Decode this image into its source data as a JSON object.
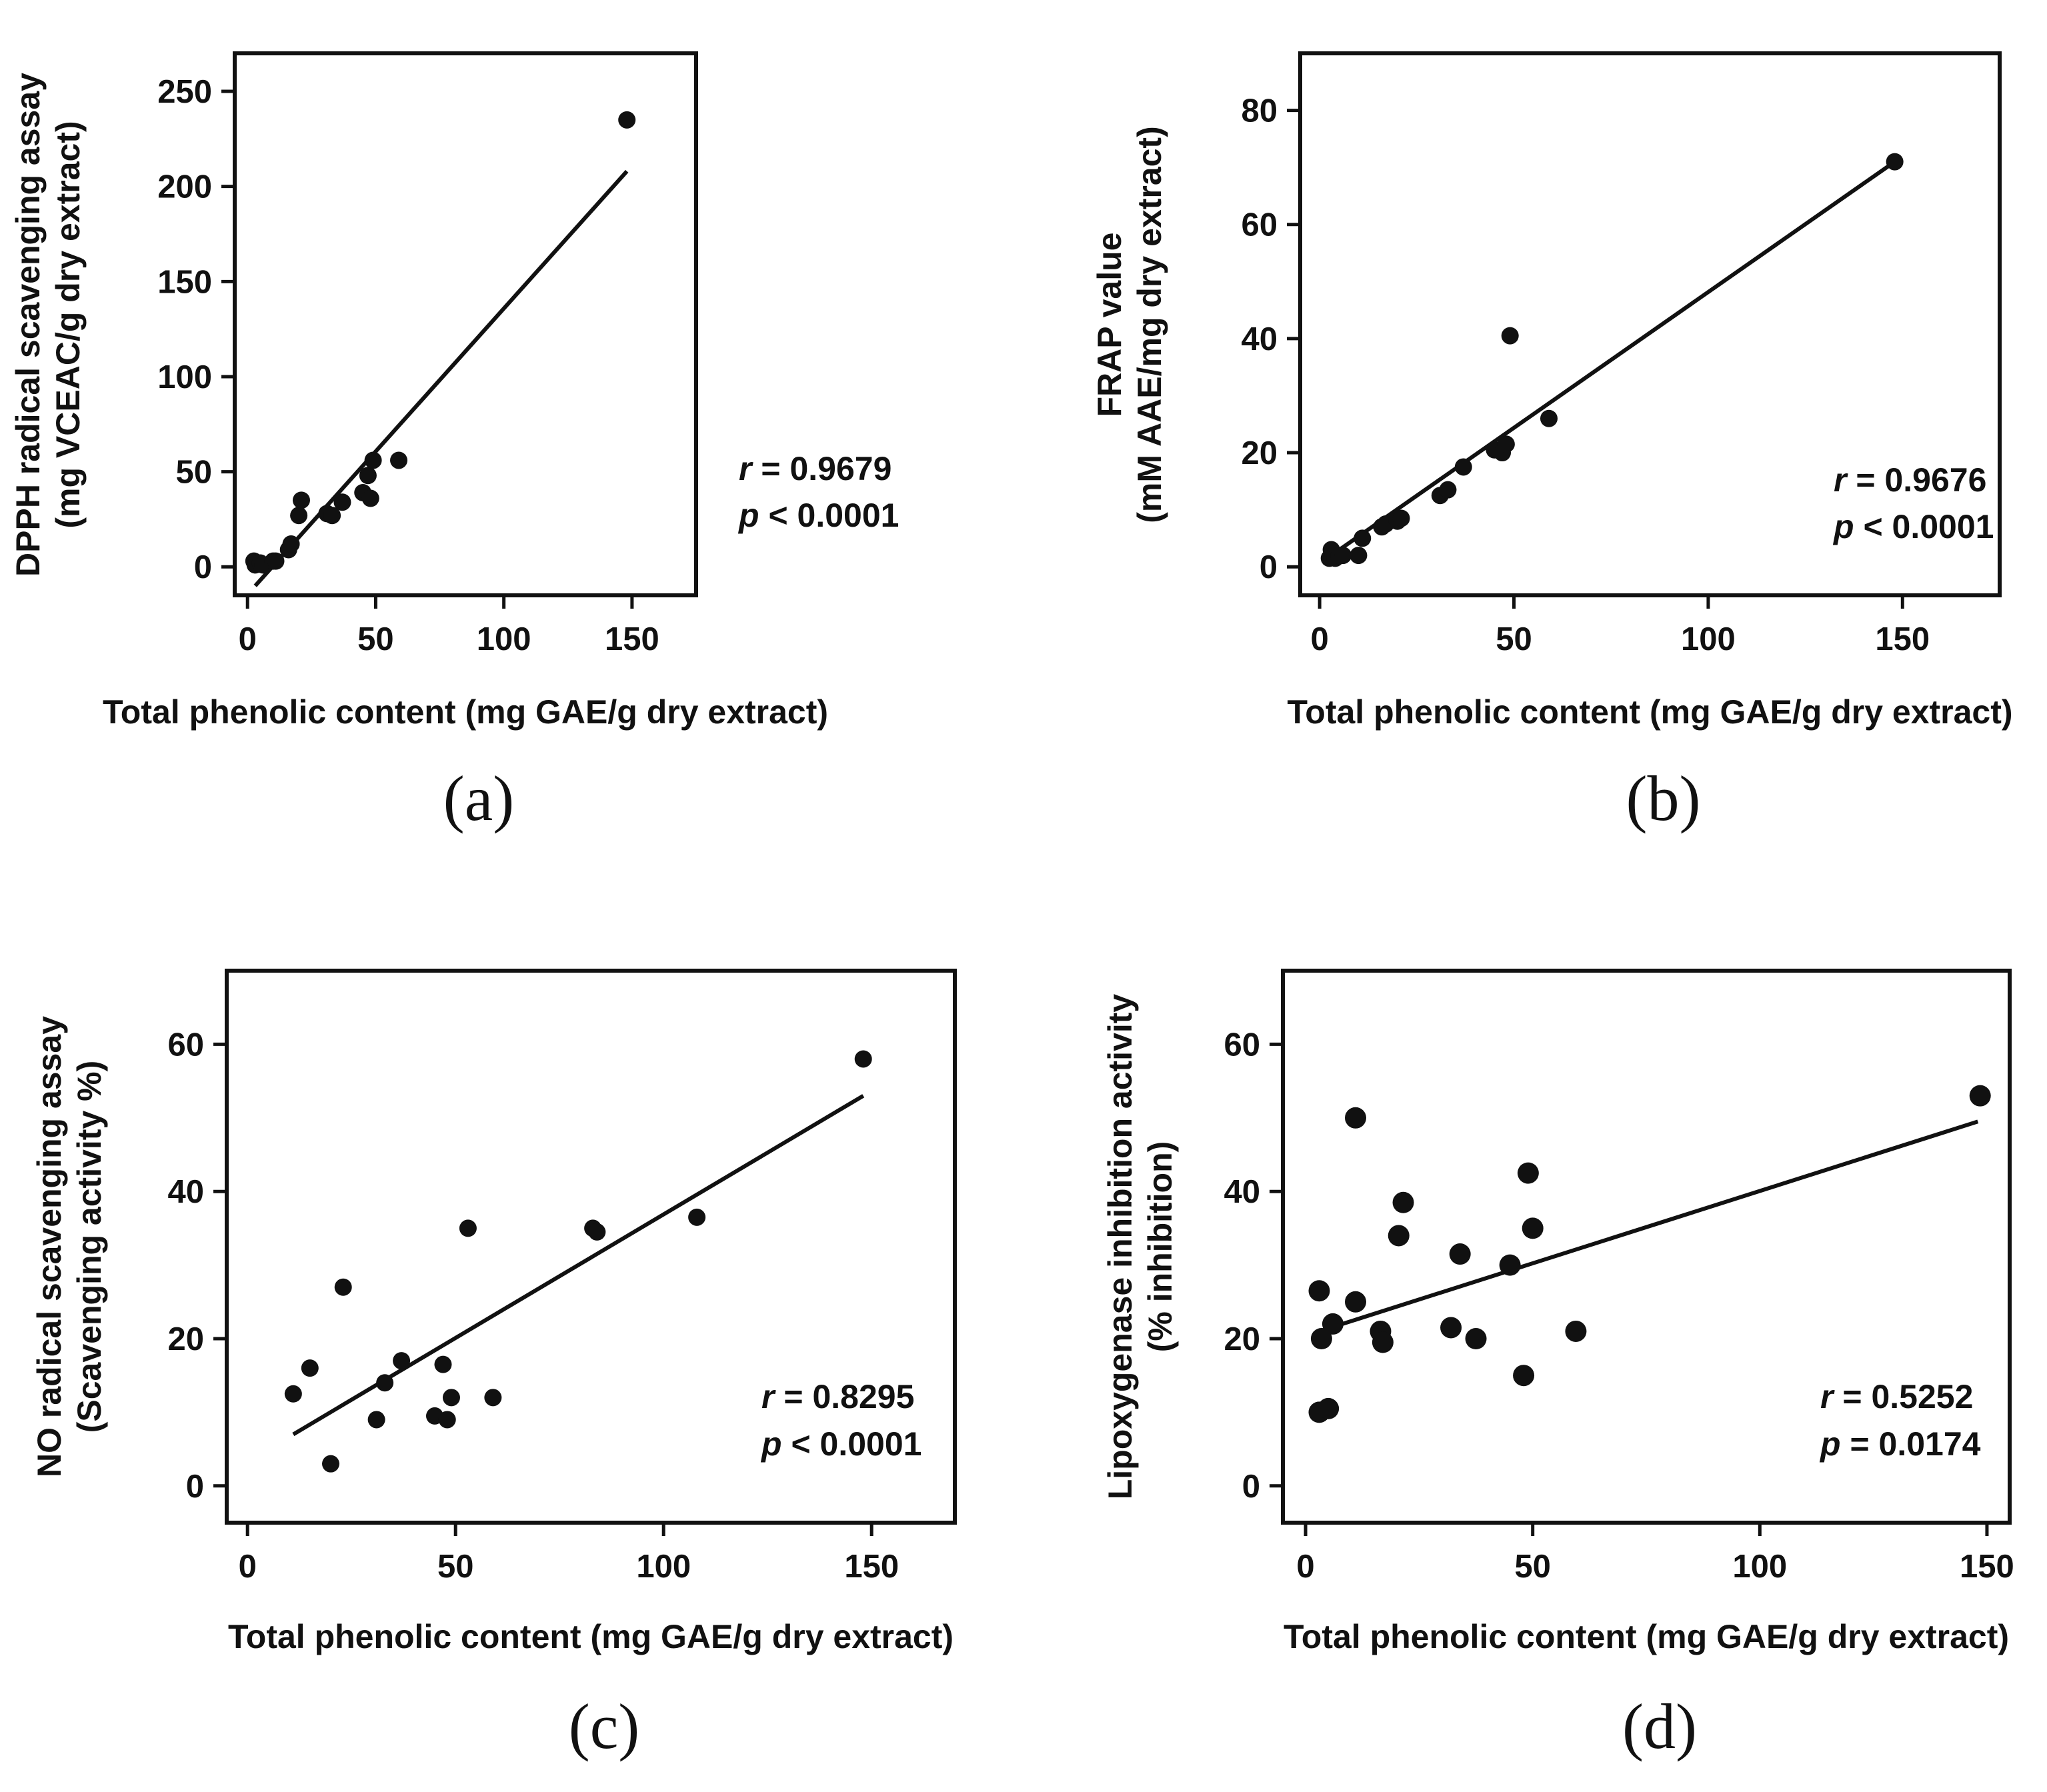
{
  "chart_data": [
    {
      "type": "scatter",
      "panel_label": "(a)",
      "xlabel": "Total phenolic content (mg GAE/g dry extract)",
      "ylabel_lines": [
        "DPPH radical scavenging assay",
        "(mg VCEAC/g dry extract)"
      ],
      "xlim": [
        -5,
        175
      ],
      "ylim": [
        -15,
        270
      ],
      "xticks": [
        0,
        50,
        100,
        150
      ],
      "yticks": [
        0,
        50,
        100,
        150,
        200,
        250
      ],
      "x": [
        2.5,
        3,
        3.5,
        5,
        6,
        10,
        11,
        16,
        17,
        20,
        21,
        31,
        33,
        37,
        45,
        47,
        48,
        49,
        59,
        148
      ],
      "y": [
        3,
        1,
        2,
        2,
        1,
        3,
        3,
        9,
        12,
        27,
        35,
        28,
        27,
        34,
        39,
        48,
        36,
        56,
        56,
        235
      ],
      "fit": {
        "x": [
          3,
          148
        ],
        "y": [
          -10,
          208
        ]
      },
      "stat_r_label": "r",
      "stat_r_value": " = 0.9679",
      "stat_p_label": "p",
      "stat_p_value": " < 0.0001"
    },
    {
      "type": "scatter",
      "panel_label": "(b)",
      "xlabel": "Total phenolic content (mg GAE/g dry extract)",
      "ylabel_lines": [
        "FRAP value",
        "(mM AAE/mg dry extract)"
      ],
      "xlim": [
        -5,
        175
      ],
      "ylim": [
        -5,
        90
      ],
      "xticks": [
        0,
        50,
        100,
        150
      ],
      "yticks": [
        0,
        20,
        40,
        60,
        80
      ],
      "x": [
        2.5,
        3,
        3.5,
        4,
        5,
        6,
        10,
        11,
        16,
        17,
        20,
        21,
        31,
        33,
        37,
        45,
        47,
        48,
        49,
        59,
        148
      ],
      "y": [
        1.5,
        3,
        2,
        1.5,
        2,
        2,
        2,
        5,
        7,
        7.5,
        8,
        8.5,
        12.5,
        13.5,
        17.5,
        20.5,
        20,
        21.5,
        40.5,
        26,
        71
      ],
      "fit": {
        "x": [
          3,
          148
        ],
        "y": [
          2,
          71
        ]
      },
      "stat_r_label": "r",
      "stat_r_value": " = 0.9676",
      "stat_p_label": "p",
      "stat_p_value": " < 0.0001"
    },
    {
      "type": "scatter",
      "panel_label": "(c)",
      "xlabel": "Total phenolic content (mg GAE/g dry extract)",
      "ylabel_lines": [
        "NO radical scavenging assay",
        "(Scavenging activity %)"
      ],
      "xlim": [
        -5,
        170
      ],
      "ylim": [
        -5,
        70
      ],
      "xticks": [
        0,
        50,
        100,
        150
      ],
      "yticks": [
        0,
        20,
        40,
        60
      ],
      "x": [
        11,
        15,
        20,
        23,
        31,
        33,
        37,
        45,
        47,
        48,
        49,
        53,
        59,
        83,
        84,
        108,
        148
      ],
      "y": [
        12.5,
        16,
        3,
        27,
        9,
        14,
        17,
        9.5,
        16.5,
        9,
        12,
        35,
        12,
        35,
        34.5,
        36.5,
        58
      ],
      "fit": {
        "x": [
          11,
          148
        ],
        "y": [
          7,
          53
        ]
      },
      "stat_r_label": "r",
      "stat_r_value": " = 0.8295",
      "stat_p_label": "p",
      "stat_p_value": " < 0.0001"
    },
    {
      "type": "scatter",
      "panel_label": "(d)",
      "xlabel": "Total phenolic content (mg GAE/g dry extract)",
      "ylabel_lines": [
        "Lipoxygenase inhibition activity",
        "(% inhibition)"
      ],
      "xlim": [
        -5,
        155
      ],
      "ylim": [
        -5,
        70
      ],
      "xticks": [
        0,
        50,
        100,
        150
      ],
      "yticks": [
        0,
        20,
        40,
        60
      ],
      "x": [
        3,
        3,
        3.5,
        5,
        6,
        11,
        11,
        16.5,
        17,
        20.5,
        21.5,
        32,
        34,
        37.5,
        45,
        48,
        49,
        50,
        59.5,
        148.5
      ],
      "y": [
        26.5,
        10,
        20,
        10.5,
        22,
        25,
        50,
        21,
        19.5,
        34,
        38.5,
        21.5,
        31.5,
        20,
        30,
        15,
        42.5,
        35,
        21,
        53
      ],
      "fit": {
        "x": [
          3,
          148
        ],
        "y": [
          21,
          49.5
        ]
      },
      "stat_r_label": "r",
      "stat_r_value": " = 0.5252",
      "stat_p_label": "p",
      "stat_p_value": " = 0.0174"
    }
  ]
}
